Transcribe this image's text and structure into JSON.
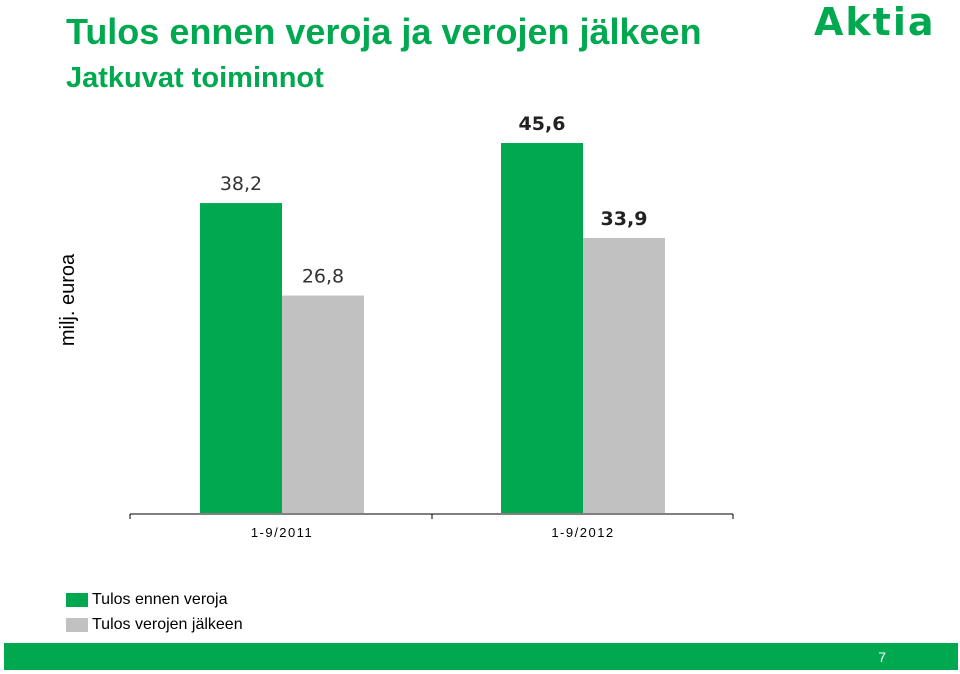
{
  "header": {
    "title": "Tulos ennen veroja ja verojen jälkeen",
    "subtitle": "Jatkuvat toiminnot",
    "logo_text": "Aktia"
  },
  "footer": {
    "page_number": "7"
  },
  "colors": {
    "brand_green": "#00a94f",
    "gray_series": "#c1c1c1"
  },
  "chart_data": {
    "type": "bar",
    "categories": [
      "1-9/2011",
      "1-9/2012"
    ],
    "series": [
      {
        "name": "Tulos ennen veroja",
        "values": [
          38.2,
          45.6
        ],
        "labels": [
          "38,2",
          "45,6"
        ],
        "color": "#00a94f"
      },
      {
        "name": "Tulos verojen jälkeen",
        "values": [
          26.8,
          33.9
        ],
        "labels": [
          "26,8",
          "33,9"
        ],
        "color": "#c1c1c1"
      }
    ],
    "ylabel": "milj. euroa",
    "ylim": [
      0,
      45.6
    ],
    "grid": false,
    "legend_position": "bottom-left"
  }
}
